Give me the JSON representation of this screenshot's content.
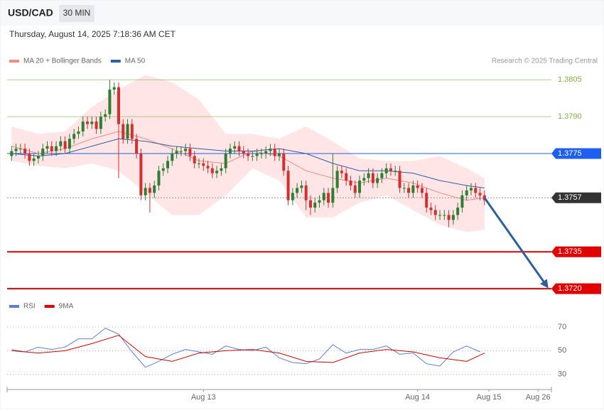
{
  "header": {
    "symbol": "USD/CAD",
    "interval": "30 MIN",
    "timestamp": "Thursday, August 14, 2025 7:18:36 AM CET"
  },
  "chart_data": [
    {
      "type": "candlestick",
      "credit": "Research © 2025 Trading Central",
      "legend": "top-left",
      "up_color": "#2e7d32",
      "down_color": "#d32f2f",
      "xlim": [
        -1,
        121
      ],
      "ylim": [
        1.3716,
        1.381
      ],
      "open": [
        1.3774,
        1.3776,
        1.3777,
        1.3777,
        1.3775,
        1.3772,
        1.3773,
        1.3774,
        1.3777,
        1.3778,
        1.3776,
        1.3778,
        1.378,
        1.3777,
        1.3781,
        1.3783,
        1.3784,
        1.3788,
        1.3787,
        1.3788,
        1.3785,
        1.379,
        1.3791,
        1.3801,
        1.3802,
        1.3787,
        1.3781,
        1.3787,
        1.3781,
        1.3775,
        1.3758,
        1.3761,
        1.3759,
        1.3762,
        1.3768,
        1.3769,
        1.3772,
        1.3775,
        1.3776,
        1.3776,
        1.3777,
        1.3774,
        1.3771,
        1.3771,
        1.377,
        1.3769,
        1.3767,
        1.3768,
        1.3769,
        1.3775,
        1.3777,
        1.3778,
        1.3776,
        1.3775,
        1.3774,
        1.3774,
        1.3775,
        1.3775,
        1.3776,
        1.3777,
        1.3774,
        1.3775,
        1.3768,
        1.3756,
        1.3759,
        1.3761,
        1.3762,
        1.3756,
        1.3753,
        1.3755,
        1.3756,
        1.3759,
        1.3755,
        1.3761,
        1.3768,
        1.3767,
        1.3764,
        1.3762,
        1.3759,
        1.3764,
        1.3765,
        1.3767,
        1.3763,
        1.3765,
        1.3767,
        1.3769,
        1.3768,
        1.3768,
        1.3761,
        1.3761,
        1.3759,
        1.3762,
        1.3761,
        1.3759,
        1.3753,
        1.3752,
        1.375,
        1.375,
        1.375,
        1.3748,
        1.375,
        1.3753,
        1.3758,
        1.376,
        1.3761,
        1.3759,
        1.3758
      ],
      "high": [
        1.3778,
        1.3779,
        1.3779,
        1.3779,
        1.3777,
        1.3775,
        1.3776,
        1.3779,
        1.378,
        1.378,
        1.378,
        1.3782,
        1.3782,
        1.3783,
        1.3785,
        1.3786,
        1.379,
        1.379,
        1.379,
        1.379,
        1.3792,
        1.3793,
        1.3805,
        1.3804,
        1.3804,
        1.3789,
        1.3789,
        1.3789,
        1.3783,
        1.3777,
        1.3763,
        1.3763,
        1.3764,
        1.377,
        1.3771,
        1.3774,
        1.3777,
        1.3778,
        1.3778,
        1.3779,
        1.3779,
        1.3776,
        1.3773,
        1.3773,
        1.3772,
        1.3771,
        1.377,
        1.3771,
        1.3777,
        1.3779,
        1.378,
        1.378,
        1.3778,
        1.3777,
        1.3776,
        1.3777,
        1.3777,
        1.3778,
        1.3779,
        1.3779,
        1.3777,
        1.3777,
        1.377,
        1.3761,
        1.3763,
        1.3764,
        1.3764,
        1.3758,
        1.3757,
        1.3758,
        1.3761,
        1.3761,
        1.3775,
        1.377,
        1.377,
        1.3769,
        1.3766,
        1.3764,
        1.3766,
        1.3767,
        1.3769,
        1.3769,
        1.3767,
        1.3769,
        1.3771,
        1.3771,
        1.377,
        1.377,
        1.3763,
        1.3763,
        1.3764,
        1.3764,
        1.3763,
        1.3761,
        1.3755,
        1.3754,
        1.3752,
        1.3752,
        1.3752,
        1.3752,
        1.3755,
        1.376,
        1.3762,
        1.3763,
        1.3763,
        1.3761,
        1.376
      ],
      "low": [
        1.3772,
        1.3774,
        1.3775,
        1.3773,
        1.377,
        1.377,
        1.3771,
        1.3772,
        1.3775,
        1.3774,
        1.3774,
        1.3776,
        1.3775,
        1.3775,
        1.3779,
        1.3781,
        1.3782,
        1.3785,
        1.3785,
        1.3783,
        1.3783,
        1.3788,
        1.3789,
        1.3799,
        1.3765,
        1.3779,
        1.3779,
        1.3779,
        1.3773,
        1.3756,
        1.3756,
        1.3751,
        1.3757,
        1.376,
        1.3766,
        1.3767,
        1.377,
        1.3773,
        1.3774,
        1.3774,
        1.3772,
        1.3769,
        1.3769,
        1.3768,
        1.3767,
        1.3765,
        1.3765,
        1.3766,
        1.3767,
        1.3773,
        1.3775,
        1.3774,
        1.3773,
        1.3772,
        1.3772,
        1.3772,
        1.3773,
        1.3773,
        1.3774,
        1.3772,
        1.3772,
        1.3766,
        1.3754,
        1.3754,
        1.3757,
        1.3759,
        1.3752,
        1.375,
        1.3751,
        1.3753,
        1.3754,
        1.3753,
        1.3753,
        1.3759,
        1.3765,
        1.3762,
        1.376,
        1.3757,
        1.3757,
        1.3762,
        1.3763,
        1.3761,
        1.3761,
        1.3763,
        1.3765,
        1.3766,
        1.3766,
        1.3759,
        1.3759,
        1.3757,
        1.3757,
        1.3759,
        1.3757,
        1.3751,
        1.375,
        1.3748,
        1.3748,
        1.3748,
        1.3745,
        1.3746,
        1.3748,
        1.3751,
        1.3756,
        1.3758,
        1.3757,
        1.3756,
        1.3754
      ],
      "close": [
        1.3776,
        1.3777,
        1.3777,
        1.3775,
        1.3772,
        1.3773,
        1.3774,
        1.3777,
        1.3778,
        1.3776,
        1.3778,
        1.378,
        1.3777,
        1.3781,
        1.3783,
        1.3784,
        1.3788,
        1.3787,
        1.3788,
        1.3785,
        1.379,
        1.3791,
        1.3801,
        1.3802,
        1.3787,
        1.3781,
        1.3787,
        1.3781,
        1.3775,
        1.3758,
        1.3761,
        1.3759,
        1.3762,
        1.3768,
        1.3769,
        1.3772,
        1.3775,
        1.3776,
        1.3776,
        1.3777,
        1.3774,
        1.3771,
        1.3771,
        1.377,
        1.3769,
        1.3767,
        1.3768,
        1.3769,
        1.3775,
        1.3777,
        1.3778,
        1.3776,
        1.3775,
        1.3774,
        1.3774,
        1.3775,
        1.3775,
        1.3776,
        1.3777,
        1.3774,
        1.3775,
        1.3768,
        1.3756,
        1.3759,
        1.3761,
        1.3762,
        1.3756,
        1.3753,
        1.3755,
        1.3756,
        1.3759,
        1.3755,
        1.3761,
        1.3768,
        1.3767,
        1.3764,
        1.3762,
        1.3759,
        1.3764,
        1.3765,
        1.3767,
        1.3763,
        1.3765,
        1.3767,
        1.3769,
        1.3768,
        1.3768,
        1.3761,
        1.3761,
        1.3759,
        1.3762,
        1.3761,
        1.3759,
        1.3753,
        1.3752,
        1.375,
        1.375,
        1.375,
        1.3748,
        1.375,
        1.3753,
        1.3758,
        1.376,
        1.3761,
        1.3759,
        1.3758,
        1.3756
      ],
      "series": [
        {
          "name": "MA 20 + Bollinger Bands",
          "color": "#f28b82",
          "band_color": "#ffdcdc",
          "x": [
            0,
            6,
            12,
            18,
            24,
            30,
            36,
            42,
            48,
            54,
            60,
            66,
            72,
            78,
            84,
            90,
            96,
            102,
            106
          ],
          "values": [
            1.3778,
            1.3775,
            1.3777,
            1.3781,
            1.3784,
            1.3781,
            1.3777,
            1.3772,
            1.3771,
            1.3776,
            1.3774,
            1.3768,
            1.3765,
            1.3763,
            1.3765,
            1.3763,
            1.3759,
            1.3756,
            1.3757
          ],
          "upper": [
            1.3786,
            1.3783,
            1.3784,
            1.3794,
            1.3801,
            1.3807,
            1.3804,
            1.3797,
            1.3783,
            1.3783,
            1.3781,
            1.3786,
            1.378,
            1.3773,
            1.3772,
            1.3772,
            1.3774,
            1.3769,
            1.3765
          ],
          "lower": [
            1.3772,
            1.377,
            1.3769,
            1.3771,
            1.3768,
            1.3759,
            1.375,
            1.375,
            1.3758,
            1.3769,
            1.3764,
            1.3749,
            1.3749,
            1.3755,
            1.3758,
            1.3752,
            1.3746,
            1.3743,
            1.3744
          ]
        },
        {
          "name": "MA 50",
          "color": "#2e5fa3",
          "x": [
            0,
            6,
            12,
            18,
            24,
            30,
            36,
            42,
            48,
            54,
            60,
            66,
            72,
            78,
            84,
            90,
            96,
            102,
            106
          ],
          "values": [
            1.3775,
            1.3774,
            1.3775,
            1.3778,
            1.3781,
            1.378,
            1.3778,
            1.3777,
            1.3776,
            1.3776,
            1.3777,
            1.3775,
            1.3771,
            1.3768,
            1.3768,
            1.3767,
            1.3764,
            1.3762,
            1.3761
          ]
        }
      ],
      "levels": [
        {
          "price": 1.3805,
          "color": "#7cb342",
          "style": "text"
        },
        {
          "price": {
            "value": 1.379,
            "label": "1.3790"
          },
          "color": "#7cb342",
          "style": "text"
        },
        {
          "price": 1.3775,
          "color": "#1e5ef0",
          "style": "box"
        },
        {
          "price": 1.3757,
          "color": "#333333",
          "style": "current"
        },
        {
          "price": 1.3735,
          "color": "#e00000",
          "style": "box"
        },
        {
          "price": {
            "value": 1.372,
            "label": "1.3720"
          },
          "color": "#e00000",
          "style": "box"
        }
      ],
      "arrow": {
        "x": [
          106,
          120
        ],
        "y": [
          1.3757,
          1.3721
        ],
        "color": "#2e5fa3"
      }
    },
    {
      "type": "line",
      "legend": "top-left",
      "xlim": [
        -1,
        121
      ],
      "ylim": [
        22,
        79
      ],
      "yticks": [
        30,
        50,
        70
      ],
      "xticks": [
        {
          "value": 43,
          "label": "Aug 13"
        },
        {
          "value": 91,
          "label": "Aug 14"
        },
        {
          "value": 107,
          "label": "Aug 15"
        },
        {
          "value": 118,
          "label": "Aug 26"
        }
      ],
      "series": [
        {
          "name": "RSI",
          "color": "#5b7fd6",
          "x": [
            0,
            3,
            6,
            9,
            12,
            15,
            18,
            21,
            24,
            27,
            30,
            33,
            36,
            39,
            42,
            45,
            48,
            51,
            54,
            57,
            60,
            63,
            66,
            69,
            72,
            75,
            78,
            81,
            84,
            87,
            90,
            93,
            96,
            99,
            102,
            105
          ],
          "values": [
            51,
            49,
            53,
            51,
            53,
            60,
            60,
            69,
            64,
            49,
            36,
            41,
            47,
            51,
            49,
            47,
            54,
            51,
            50,
            53,
            44,
            40,
            39,
            43,
            55,
            48,
            51,
            51,
            54,
            47,
            48,
            39,
            37,
            49,
            54,
            49
          ]
        },
        {
          "name": "9MA",
          "color": "#e00000",
          "x": [
            0,
            6,
            12,
            18,
            24,
            30,
            36,
            42,
            48,
            54,
            60,
            66,
            72,
            78,
            84,
            90,
            96,
            102,
            106
          ],
          "values": [
            50,
            48,
            50,
            56,
            63,
            45,
            41,
            48,
            50,
            51,
            48,
            41,
            40,
            48,
            51,
            49,
            44,
            41,
            48
          ]
        }
      ]
    }
  ]
}
